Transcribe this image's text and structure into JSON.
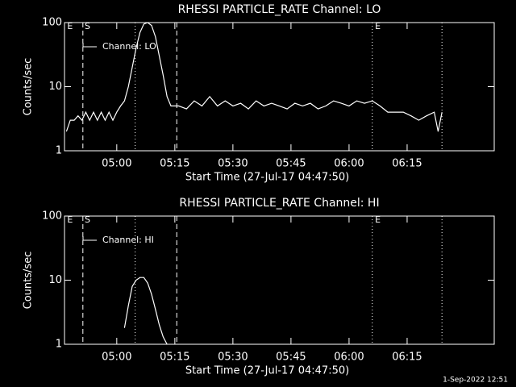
{
  "chart_data": [
    {
      "type": "line",
      "title": "RHESSI PARTICLE_RATE Channel: LO",
      "xlabel": "Start Time (27-Jul-17 04:47:50)",
      "ylabel": "Counts/sec",
      "log_y": true,
      "ylim": [
        1,
        100
      ],
      "yticks": [
        1,
        10,
        100
      ],
      "xlim": [
        "04:46:30",
        "06:37:30"
      ],
      "xticks": [
        "05:00",
        "05:15",
        "05:30",
        "05:45",
        "06:00",
        "06:15"
      ],
      "vlines": [
        {
          "x": "04:51:15",
          "style": "dashed"
        },
        {
          "x": "05:04:45",
          "style": "dotted"
        },
        {
          "x": "05:15:30",
          "style": "dashed"
        },
        {
          "x": "06:06:00",
          "style": "dotted"
        },
        {
          "x": "06:24:00",
          "style": "dotted"
        }
      ],
      "annotations": [
        {
          "text": "E",
          "x": "04:47:00"
        },
        {
          "text": "S",
          "x": "04:51:30"
        },
        {
          "text": "E",
          "x": "06:06:30"
        }
      ],
      "series": [
        {
          "name": "Channel: LO",
          "color": "#ffffff",
          "x": [
            "04:47:00",
            "04:48:00",
            "04:49:00",
            "04:50:00",
            "04:51:00",
            "04:52:00",
            "04:53:00",
            "04:54:00",
            "04:55:00",
            "04:56:00",
            "04:57:00",
            "04:58:00",
            "04:59:00",
            "05:00:00",
            "05:01:00",
            "05:02:00",
            "05:03:00",
            "05:04:00",
            "05:05:00",
            "05:06:00",
            "05:07:00",
            "05:08:00",
            "05:09:00",
            "05:10:00",
            "05:11:00",
            "05:12:00",
            "05:13:00",
            "05:14:00",
            "05:15:00",
            "05:16:00",
            "05:18:00",
            "05:20:00",
            "05:22:00",
            "05:24:00",
            "05:26:00",
            "05:28:00",
            "05:30:00",
            "05:32:00",
            "05:34:00",
            "05:36:00",
            "05:38:00",
            "05:40:00",
            "05:42:00",
            "05:44:00",
            "05:46:00",
            "05:48:00",
            "05:50:00",
            "05:52:00",
            "05:54:00",
            "05:56:00",
            "05:58:00",
            "06:00:00",
            "06:02:00",
            "06:04:00",
            "06:06:00",
            "06:08:00",
            "06:10:00",
            "06:12:00",
            "06:14:00",
            "06:16:00",
            "06:18:00",
            "06:20:00",
            "06:22:00",
            "06:23:00",
            "06:24:00"
          ],
          "values": [
            2,
            3,
            3,
            3.5,
            3,
            4,
            3,
            4,
            3,
            4,
            3,
            4,
            3,
            4,
            5,
            6,
            10,
            20,
            40,
            70,
            95,
            100,
            90,
            60,
            30,
            15,
            7,
            5,
            5,
            5,
            4.5,
            6,
            5,
            7,
            5,
            6,
            5,
            5.5,
            4.5,
            6,
            5,
            5.5,
            5,
            4.5,
            5.5,
            5,
            5.5,
            4.5,
            5,
            6,
            5.5,
            5,
            6,
            5.5,
            6,
            5,
            4,
            4,
            4,
            3.5,
            3,
            3.5,
            4,
            2,
            4
          ]
        }
      ]
    },
    {
      "type": "line",
      "title": "RHESSI PARTICLE_RATE Channel: HI",
      "xlabel": "Start Time (27-Jul-17 04:47:50)",
      "ylabel": "Counts/sec",
      "log_y": true,
      "ylim": [
        1,
        100
      ],
      "yticks": [
        1,
        10,
        100
      ],
      "xlim": [
        "04:46:30",
        "06:37:30"
      ],
      "xticks": [
        "05:00",
        "05:15",
        "05:30",
        "05:45",
        "06:00",
        "06:15"
      ],
      "vlines": [
        {
          "x": "04:51:15",
          "style": "dashed"
        },
        {
          "x": "05:04:45",
          "style": "dotted"
        },
        {
          "x": "05:15:30",
          "style": "dashed"
        },
        {
          "x": "06:06:00",
          "style": "dotted"
        },
        {
          "x": "06:24:00",
          "style": "dotted"
        }
      ],
      "annotations": [
        {
          "text": "E",
          "x": "04:47:00"
        },
        {
          "text": "S",
          "x": "04:51:30"
        },
        {
          "text": "E",
          "x": "06:06:30"
        }
      ],
      "series": [
        {
          "name": "Channel: HI",
          "color": "#ffffff",
          "x": [
            "05:02:00",
            "05:03:00",
            "05:04:00",
            "05:05:00",
            "05:06:00",
            "05:07:00",
            "05:08:00",
            "05:09:00",
            "05:10:00",
            "05:11:00",
            "05:12:00",
            "05:13:00"
          ],
          "values": [
            1.8,
            4,
            8,
            10,
            11,
            11,
            9,
            6,
            3.5,
            2,
            1.3,
            1
          ]
        }
      ]
    }
  ],
  "footer": "1-Sep-2022 12:51"
}
